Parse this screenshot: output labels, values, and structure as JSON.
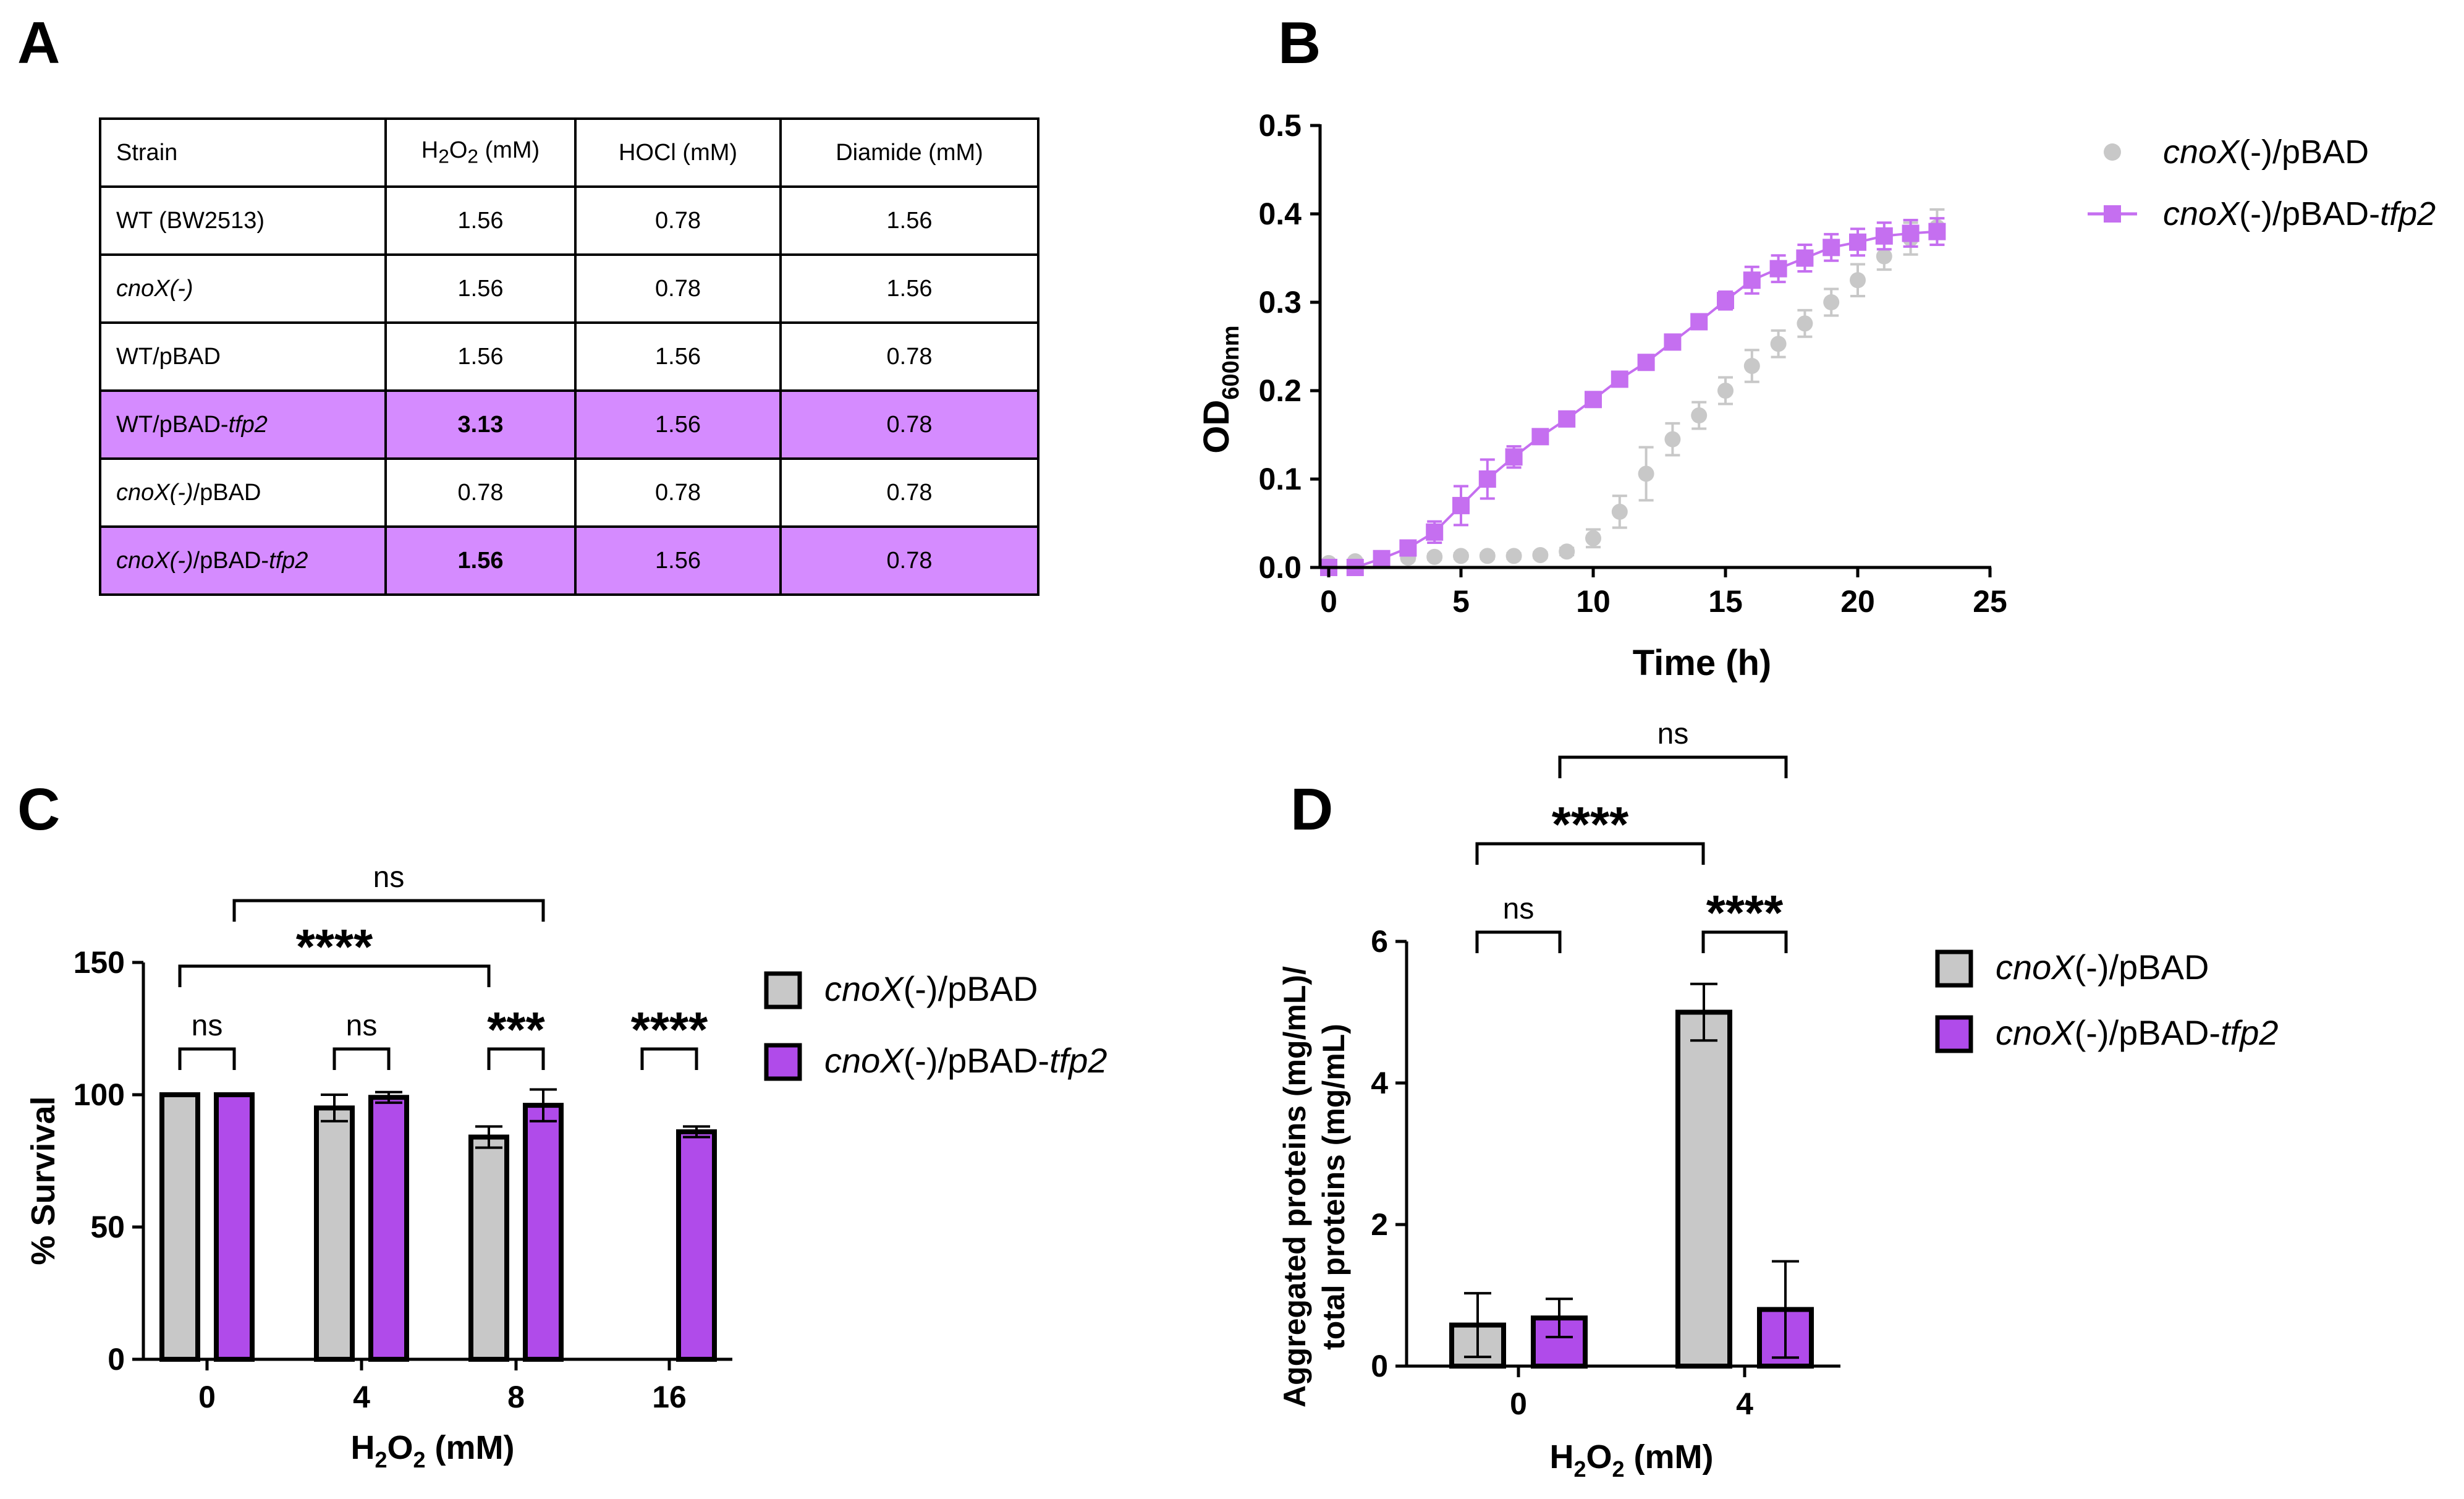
{
  "panels": {
    "a": "A",
    "b": "B",
    "c": "C",
    "d": "D"
  },
  "colors": {
    "grey": "#c8c8c8",
    "purple": "#b04bea",
    "purple_light": "#c56ff0",
    "highlight": "#d58bff"
  },
  "table": {
    "headers": [
      "Strain",
      "H2O2 (mM)",
      "HOCl (mM)",
      "Diamide (mM)"
    ],
    "h2o2_header": {
      "main": "H",
      "sub": "2",
      "mid": "O",
      "sub2": "2",
      "unit": " (mM)"
    },
    "rows": [
      {
        "strain": "WT (BW2513)",
        "h2o2": "1.56",
        "hocl": "0.78",
        "diamide": "1.56",
        "highlight": false
      },
      {
        "strain_italic": "cnoX(-)",
        "h2o2": "1.56",
        "hocl": "0.78",
        "diamide": "1.56",
        "highlight": false
      },
      {
        "strain": "WT/pBAD",
        "h2o2": "1.56",
        "hocl": "1.56",
        "diamide": "0.78",
        "highlight": false
      },
      {
        "strain": "WT/pBAD-",
        "strain_suffix_italic": "tfp2",
        "h2o2": "3.13",
        "hocl": "1.56",
        "diamide": "0.78",
        "highlight": true
      },
      {
        "strain_italic": "cnoX(-)",
        "strain_suffix": "/pBAD",
        "h2o2": "0.78",
        "hocl": "0.78",
        "diamide": "0.78",
        "highlight": false
      },
      {
        "strain_italic": "cnoX(-)",
        "strain_suffix": "/pBAD-",
        "strain_suffix_italic2": "tfp2",
        "h2o2": "1.56",
        "hocl": "1.56",
        "diamide": "0.78",
        "highlight": true
      }
    ]
  },
  "chart_data": [
    {
      "id": "B",
      "type": "line",
      "xlabel": "Time (h)",
      "ylabel": {
        "main": "OD",
        "sub": "600nm"
      },
      "xlim": [
        0,
        25
      ],
      "ylim": [
        0,
        0.5
      ],
      "xticks": [
        "0",
        "5",
        "10",
        "15",
        "20",
        "25"
      ],
      "yticks": [
        "0.0",
        "0.1",
        "0.2",
        "0.3",
        "0.4",
        "0.5"
      ],
      "legend": [
        {
          "italic": "cnoX",
          "rest": "(-)/pBAD"
        },
        {
          "italic": "cnoX",
          "rest": "(-)/pBAD-",
          "italic2": "tfp2"
        }
      ],
      "x": [
        0,
        1,
        2,
        3,
        4,
        5,
        6,
        7,
        8,
        9,
        10,
        11,
        12,
        13,
        14,
        15,
        16,
        17,
        18,
        19,
        20,
        21,
        22,
        23
      ],
      "series": [
        {
          "name": "cnoX(-)/pBAD",
          "values": [
            0.005,
            0.007,
            0.009,
            0.011,
            0.012,
            0.013,
            0.013,
            0.013,
            0.014,
            0.018,
            0.033,
            0.063,
            0.106,
            0.145,
            0.172,
            0.2,
            0.228,
            0.253,
            0.276,
            0.3,
            0.325,
            0.352,
            0.372,
            0.385
          ],
          "errors": [
            0.003,
            0.003,
            0.003,
            0.003,
            0.003,
            0.003,
            0.003,
            0.003,
            0.003,
            0.004,
            0.01,
            0.018,
            0.03,
            0.018,
            0.015,
            0.015,
            0.018,
            0.015,
            0.015,
            0.015,
            0.018,
            0.015,
            0.018,
            0.02
          ]
        },
        {
          "name": "cnoX(-)/pBAD-tfp2",
          "values": [
            0.0,
            0.0,
            0.01,
            0.022,
            0.04,
            0.07,
            0.1,
            0.125,
            0.148,
            0.168,
            0.19,
            0.213,
            0.232,
            0.255,
            0.278,
            0.302,
            0.325,
            0.338,
            0.35,
            0.362,
            0.368,
            0.375,
            0.378,
            0.38
          ],
          "errors": [
            0.003,
            0.003,
            0.004,
            0.006,
            0.012,
            0.022,
            0.022,
            0.012,
            0.008,
            0.008,
            0.008,
            0.008,
            0.008,
            0.008,
            0.008,
            0.01,
            0.015,
            0.015,
            0.015,
            0.015,
            0.015,
            0.015,
            0.015,
            0.015
          ]
        }
      ]
    },
    {
      "id": "C",
      "type": "bar",
      "xlabel": {
        "main": "H",
        "sub": "2",
        "mid": "O",
        "sub2": "2",
        "unit": " (mM)"
      },
      "ylabel": "% Survival",
      "ylim": [
        0,
        150
      ],
      "yticks": [
        "0",
        "50",
        "100",
        "150"
      ],
      "categories": [
        "0",
        "4",
        "8",
        "16"
      ],
      "series": [
        {
          "name": "cnoX(-)/pBAD",
          "values": [
            100,
            95,
            84,
            0
          ],
          "errors": [
            0,
            5,
            4,
            0
          ]
        },
        {
          "name": "cnoX(-)/pBAD-tfp2",
          "values": [
            100,
            99,
            96,
            86
          ],
          "errors": [
            0,
            2,
            6,
            2
          ]
        }
      ],
      "legend": [
        {
          "italic": "cnoX",
          "rest": "(-)/pBAD"
        },
        {
          "italic": "cnoX",
          "rest": "(-)/pBAD-",
          "italic2": "tfp2"
        }
      ],
      "significance": {
        "pair": [
          "ns",
          "ns",
          "***",
          "****"
        ],
        "grey_0_vs_8": "****",
        "purple_0_vs_8": "ns"
      }
    },
    {
      "id": "D",
      "type": "bar",
      "xlabel": {
        "main": "H",
        "sub": "2",
        "mid": "O",
        "sub2": "2",
        "unit": " (mM)"
      },
      "ylabel_lines": [
        "Aggregated proteins (mg/mL)/",
        "total proteins (mg/mL)"
      ],
      "ylim": [
        0,
        6
      ],
      "yticks": [
        "0",
        "2",
        "4",
        "6"
      ],
      "categories": [
        "0",
        "4"
      ],
      "series": [
        {
          "name": "cnoX(-)/pBAD",
          "values": [
            0.58,
            5.0
          ],
          "errors": [
            0.45,
            0.4
          ]
        },
        {
          "name": "cnoX(-)/pBAD-tfp2",
          "values": [
            0.68,
            0.8
          ],
          "errors": [
            0.27,
            0.68
          ]
        }
      ],
      "legend": [
        {
          "italic": "cnoX",
          "rest": "(-)/pBAD"
        },
        {
          "italic": "cnoX",
          "rest": "(-)/pBAD-",
          "italic2": "tfp2"
        }
      ],
      "significance": {
        "pair": [
          "ns",
          "****"
        ],
        "grey_0_vs_4": "****",
        "purple_0_vs_4": "ns"
      }
    }
  ]
}
